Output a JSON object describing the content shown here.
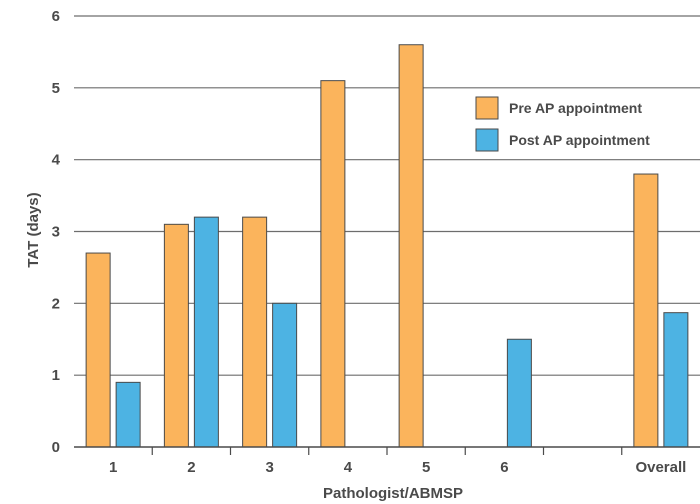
{
  "chart_data": {
    "type": "bar",
    "title": "",
    "xlabel": "Pathologist/ABMSP",
    "ylabel": "TAT (days)",
    "ylim": [
      0,
      6
    ],
    "yticks": [
      0,
      1,
      2,
      3,
      4,
      5,
      6
    ],
    "grid": true,
    "legend_position": "right",
    "categories": [
      "1",
      "2",
      "3",
      "4",
      "5",
      "6",
      "",
      "Overall"
    ],
    "series": [
      {
        "name": "Pre AP appointment",
        "color": "#fbb45c",
        "values": [
          2.7,
          3.1,
          3.2,
          5.1,
          5.6,
          null,
          null,
          3.8
        ]
      },
      {
        "name": "Post AP appointment",
        "color": "#4db3e3",
        "values": [
          0.9,
          3.2,
          2.0,
          null,
          null,
          1.5,
          null,
          1.87
        ]
      }
    ]
  }
}
